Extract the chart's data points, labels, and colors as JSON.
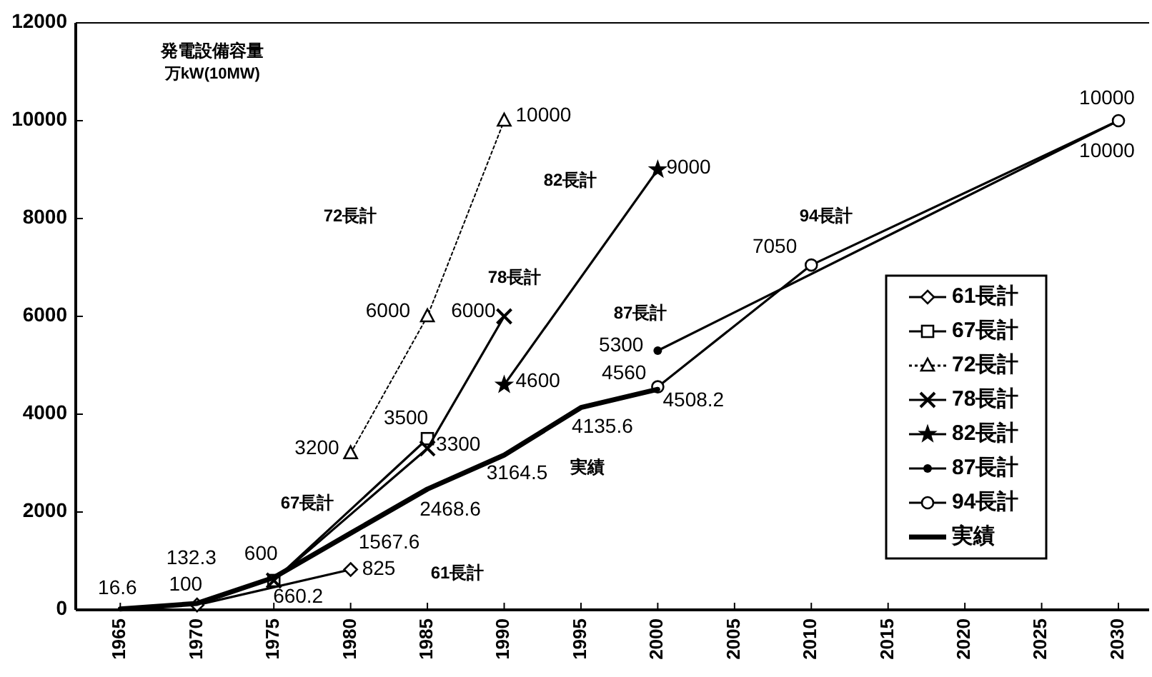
{
  "chart_data": {
    "type": "line",
    "title": "発電設備容量",
    "subtitle": "万kW(10MW)",
    "xlim": [
      1962.1,
      2032
    ],
    "xticks": [
      1965,
      1970,
      1975,
      1980,
      1985,
      1990,
      1995,
      2000,
      2005,
      2010,
      2015,
      2020,
      2025,
      2030
    ],
    "ylim": [
      0,
      12000
    ],
    "yticks": [
      0,
      2000,
      4000,
      6000,
      8000,
      10000,
      12000
    ],
    "grid": false,
    "legend": "right",
    "series": [
      {
        "name": "61長計",
        "color": "#000000",
        "marker": "diamond",
        "line_style": "solid",
        "x": [
          1970,
          1980
        ],
        "values": [
          100,
          825
        ],
        "value_labels": [
          "100",
          "825"
        ]
      },
      {
        "name": "67長計",
        "color": "#000000",
        "marker": "square",
        "line_style": "solid",
        "x": [
          1975,
          1985
        ],
        "values": [
          600,
          3500
        ],
        "value_labels": [
          "600",
          "3500"
        ]
      },
      {
        "name": "72長計",
        "color": "#000000",
        "marker": "triangle",
        "line_style": "dotted",
        "x": [
          1980,
          1985,
          1990
        ],
        "values": [
          3200,
          6000,
          10000
        ],
        "value_labels": [
          "3200",
          "6000",
          "10000"
        ]
      },
      {
        "name": "78長計",
        "color": "#000000",
        "marker": "cross",
        "line_style": "solid",
        "x": [
          1975,
          1985,
          1990
        ],
        "values": [
          600,
          3300,
          6000
        ],
        "value_labels": [
          null,
          "3300",
          "6000"
        ]
      },
      {
        "name": "82長計",
        "color": "#000000",
        "marker": "star",
        "line_style": "solid",
        "x": [
          1990,
          2000
        ],
        "values": [
          4600,
          9000
        ],
        "value_labels": [
          "4600",
          "9000"
        ]
      },
      {
        "name": "87長計",
        "color": "#000000",
        "marker": "circle",
        "line_style": "solid",
        "x": [
          2000,
          2030
        ],
        "values": [
          5300,
          10000
        ],
        "value_labels": [
          "5300",
          "10000"
        ]
      },
      {
        "name": "94長計",
        "color": "#000000",
        "marker": "circle",
        "line_style": "solid",
        "x": [
          2000,
          2010,
          2030
        ],
        "values": [
          4560,
          7050,
          10000
        ],
        "value_labels": [
          "4560",
          "7050",
          "10000"
        ]
      },
      {
        "name": "実績",
        "color": "#000000",
        "marker": "none",
        "line_style": "solid",
        "x": [
          1965,
          1970,
          1975,
          1980,
          1985,
          1990,
          1995,
          2000
        ],
        "values": [
          16.6,
          132.3,
          660.2,
          1567.6,
          2468.6,
          3164.5,
          4135.6,
          4508.2
        ],
        "value_labels": [
          "16.6",
          "132.3",
          "660.2",
          "1567.6",
          "2468.6",
          "3164.5",
          "4135.6",
          "4508.2"
        ]
      }
    ],
    "annotations": [
      "61長計",
      "67長計",
      "72長計",
      "78長計",
      "82長計",
      "87長計",
      "94長計",
      "実績"
    ]
  }
}
